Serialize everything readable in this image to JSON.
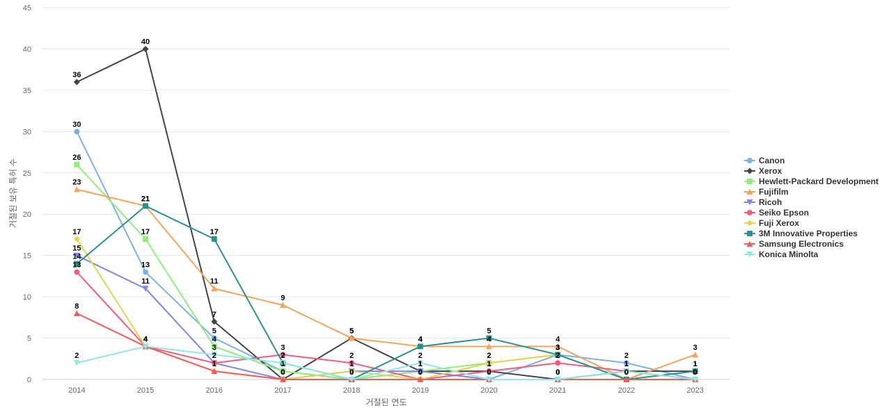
{
  "chart_data": {
    "type": "line",
    "title": "",
    "xlabel": "거절된 연도",
    "ylabel": "거절된 보유 특허 수",
    "ylim": [
      0,
      45
    ],
    "yticks": [
      0,
      5,
      10,
      15,
      20,
      25,
      30,
      35,
      40,
      45
    ],
    "categories": [
      "2014",
      "2015",
      "2016",
      "2017",
      "2018",
      "2019",
      "2020",
      "2021",
      "2022",
      "2023"
    ],
    "grid": true,
    "legend_position": "right",
    "series": [
      {
        "name": "Canon",
        "color": "#7cb0e8",
        "marker": "circle",
        "values": [
          30,
          13,
          5,
          1,
          0,
          1,
          0,
          3,
          2,
          0
        ]
      },
      {
        "name": "Xerox",
        "color": "#434348",
        "marker": "diamond",
        "values": [
          36,
          40,
          7,
          0,
          5,
          1,
          1,
          0,
          1,
          1
        ]
      },
      {
        "name": "Hewlett-Packard Development",
        "color": "#90ed7d",
        "marker": "square",
        "values": [
          26,
          17,
          4,
          1,
          0,
          1,
          2,
          3,
          0,
          0
        ]
      },
      {
        "name": "Fujifilm",
        "color": "#f7a35c",
        "marker": "triangle",
        "values": [
          23,
          21,
          11,
          9,
          5,
          4,
          4,
          4,
          0,
          3
        ]
      },
      {
        "name": "Ricoh",
        "color": "#8085e9",
        "marker": "triangle-down",
        "values": [
          15,
          11,
          2,
          0,
          1,
          1,
          0,
          0,
          1,
          0
        ]
      },
      {
        "name": "Seiko Epson",
        "color": "#f15c80",
        "marker": "circle",
        "values": [
          13,
          4,
          2,
          3,
          2,
          0,
          1,
          2,
          1,
          0
        ]
      },
      {
        "name": "Fuji Xerox",
        "color": "#e4d354",
        "marker": "diamond",
        "values": [
          17,
          4,
          1,
          0,
          1,
          0,
          2,
          3,
          0,
          0
        ]
      },
      {
        "name": "3M Innovative Properties",
        "color": "#2b908f",
        "marker": "square",
        "values": [
          14,
          21,
          17,
          2,
          0,
          4,
          5,
          3,
          0,
          1
        ]
      },
      {
        "name": "Samsung Electronics",
        "color": "#f45b5b",
        "marker": "triangle",
        "values": [
          8,
          4,
          1,
          0,
          0,
          0,
          0,
          0,
          0,
          0
        ]
      },
      {
        "name": "Konica Minolta",
        "color": "#91e8e1",
        "marker": "triangle-down",
        "values": [
          2,
          4,
          3,
          2,
          0,
          2,
          0,
          0,
          1,
          0
        ]
      }
    ]
  }
}
